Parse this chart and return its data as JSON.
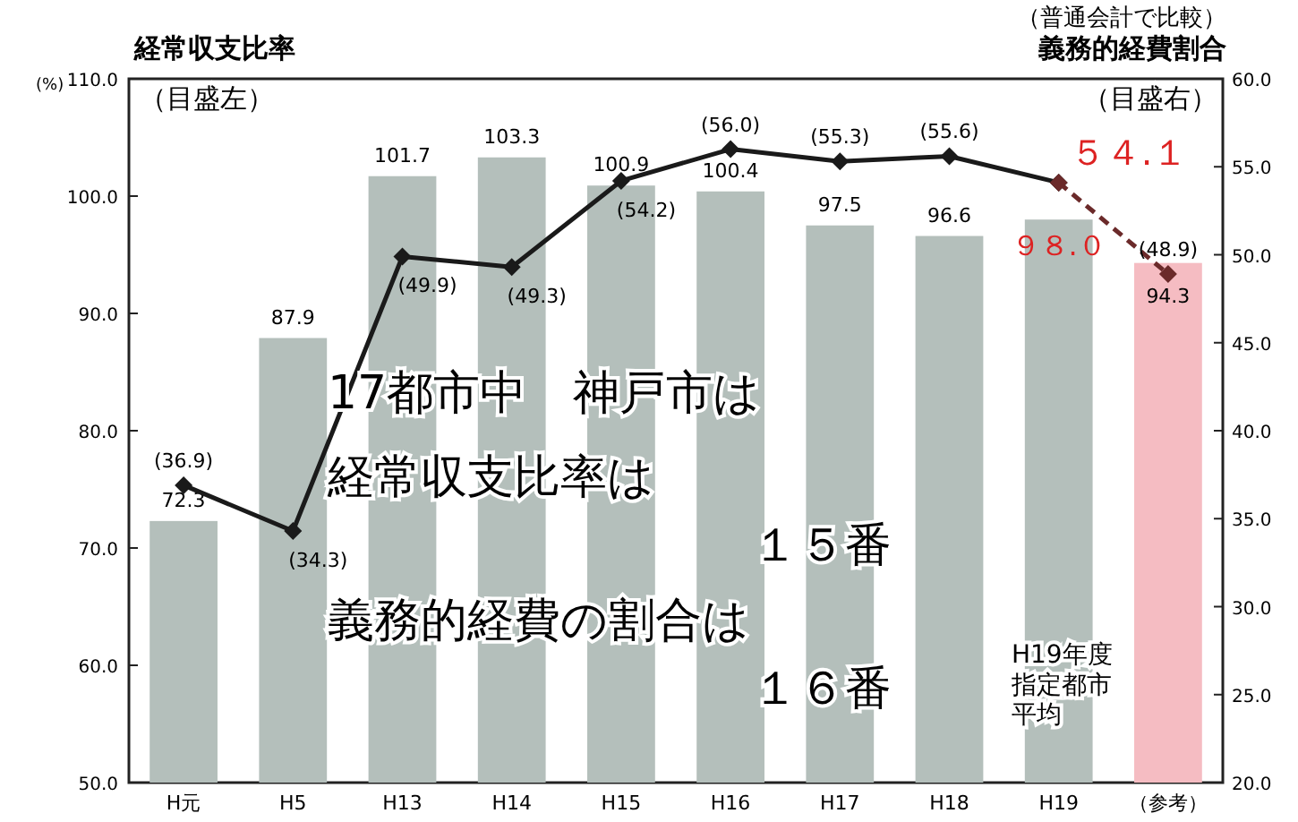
{
  "chart_data": {
    "type": "bar",
    "title": "経常収支比率",
    "subtitle": "（普通会計で比較）",
    "ylabel": "(%)",
    "y2label": "義務的経費割合",
    "categories": [
      "H元",
      "H5",
      "H13",
      "H14",
      "H15",
      "H16",
      "H17",
      "H18",
      "H19",
      "（参考）"
    ],
    "ylim": [
      50,
      110
    ],
    "yticks": [
      {
        "value": 50,
        "label": "50.0"
      },
      {
        "value": 60,
        "label": "60.0"
      },
      {
        "value": 70,
        "label": "70.0"
      },
      {
        "value": 80,
        "label": "80.0"
      },
      {
        "value": 90,
        "label": "90.0"
      },
      {
        "value": 100,
        "label": "100.0"
      },
      {
        "value": 110,
        "label": "110.0"
      }
    ],
    "y2lim": [
      20,
      60
    ],
    "y2ticks": [
      {
        "value": 20,
        "label": "20.0"
      },
      {
        "value": 25,
        "label": "25.0"
      },
      {
        "value": 30,
        "label": "30.0"
      },
      {
        "value": 35,
        "label": "35.0"
      },
      {
        "value": 40,
        "label": "40.0"
      },
      {
        "value": 45,
        "label": "45.0"
      },
      {
        "value": 50,
        "label": "50.0"
      },
      {
        "value": 55,
        "label": "55.0"
      },
      {
        "value": 60,
        "label": "60.0"
      }
    ],
    "series": [
      {
        "colors": [
          "#b4bfbb",
          "#b4bfbb",
          "#b4bfbb",
          "#b4bfbb",
          "#b4bfbb",
          "#b4bfbb",
          "#b4bfbb",
          "#b4bfbb",
          "#b4bfbb",
          "#f5bcc2"
        ],
        "values": [
          72.3,
          87.9,
          101.7,
          103.3,
          100.9,
          100.4,
          97.5,
          96.6,
          98.0,
          94.3
        ],
        "value_labels": [
          "72.3",
          "87.9",
          "101.7",
          "103.3",
          "100.9",
          "100.4",
          "97.5",
          "96.6",
          "９８.０",
          "94.3"
        ]
      },
      {
        "type": "line",
        "axis": "y2",
        "color": "#1a1a1a",
        "marker": "diamond",
        "line_style": "solid",
        "values": [
          36.9,
          34.3,
          49.9,
          49.3,
          54.2,
          56.0,
          55.3,
          55.6,
          54.1,
          null
        ],
        "value_labels": [
          "(36.9)",
          "(34.3)",
          "(49.9)",
          "(49.3)",
          "(54.2)",
          "(56.0)",
          "(55.3)",
          "(55.6)",
          "５４.１",
          null
        ]
      },
      {
        "type": "line",
        "axis": "y2",
        "color": "#6b2a2a",
        "marker": "diamond",
        "line_style": "dashed",
        "values": [
          null,
          null,
          null,
          null,
          null,
          null,
          null,
          null,
          54.1,
          48.9
        ],
        "value_labels": [
          null,
          null,
          null,
          null,
          null,
          null,
          null,
          null,
          null,
          "(48.9)"
        ]
      }
    ],
    "annotations": [
      "（目盛左）",
      "（目盛右）",
      "17都市中　神戸市は",
      "経常収支比率は",
      "１５番",
      "義務的経費の割合は",
      "１６番",
      "H19年度指定都市平均"
    ]
  }
}
